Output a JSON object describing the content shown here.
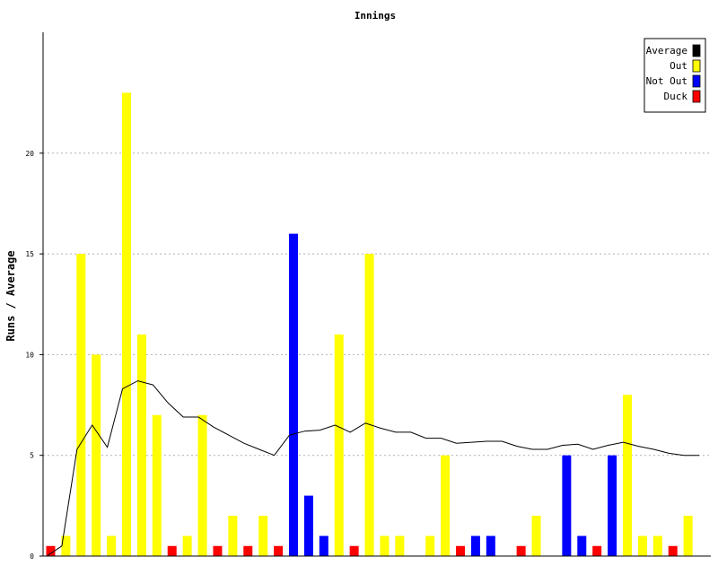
{
  "chart_data": {
    "type": "bar",
    "title": "Innings",
    "xlabel": "",
    "ylabel": "Runs / Average",
    "ylim": [
      0,
      26
    ],
    "yticks": [
      0,
      5,
      10,
      15,
      20
    ],
    "grid": true,
    "legend_position": "top-right",
    "legend": [
      {
        "name": "Average",
        "color": "#000000"
      },
      {
        "name": "Out",
        "color": "#ffff00"
      },
      {
        "name": "Not Out",
        "color": "#0000ff"
      },
      {
        "name": "Duck",
        "color": "#ff0000"
      }
    ],
    "innings": [
      {
        "value": 0,
        "kind": "Duck",
        "average": 0
      },
      {
        "value": 1,
        "kind": "Out",
        "average": 0.5
      },
      {
        "value": 15,
        "kind": "Out",
        "average": 5.3
      },
      {
        "value": 10,
        "kind": "Out",
        "average": 6.5
      },
      {
        "value": 1,
        "kind": "Out",
        "average": 5.4
      },
      {
        "value": 23,
        "kind": "Out",
        "average": 8.3
      },
      {
        "value": 11,
        "kind": "Out",
        "average": 8.7
      },
      {
        "value": 7,
        "kind": "Out",
        "average": 8.5
      },
      {
        "value": 0,
        "kind": "Duck",
        "average": 7.6
      },
      {
        "value": 1,
        "kind": "Out",
        "average": 6.9
      },
      {
        "value": 7,
        "kind": "Out",
        "average": 6.9
      },
      {
        "value": 0,
        "kind": "Duck",
        "average": 6.4
      },
      {
        "value": 2,
        "kind": "Out",
        "average": 6.0
      },
      {
        "value": 0,
        "kind": "Duck",
        "average": 5.6
      },
      {
        "value": 2,
        "kind": "Out",
        "average": 5.3
      },
      {
        "value": 0,
        "kind": "Duck",
        "average": 5.0
      },
      {
        "value": 16,
        "kind": "Not Out",
        "average": 6.0
      },
      {
        "value": 3,
        "kind": "Not Out",
        "average": 6.2
      },
      {
        "value": 1,
        "kind": "Not Out",
        "average": 6.25
      },
      {
        "value": 11,
        "kind": "Out",
        "average": 6.5
      },
      {
        "value": 0,
        "kind": "Duck",
        "average": 6.15
      },
      {
        "value": 15,
        "kind": "Out",
        "average": 6.6
      },
      {
        "value": 1,
        "kind": "Out",
        "average": 6.35
      },
      {
        "value": 1,
        "kind": "Out",
        "average": 6.15
      },
      {
        "value": 0,
        "kind": "None",
        "average": 6.15
      },
      {
        "value": 1,
        "kind": "Out",
        "average": 5.85
      },
      {
        "value": 5,
        "kind": "Out",
        "average": 5.85
      },
      {
        "value": 0,
        "kind": "Duck",
        "average": 5.6
      },
      {
        "value": 1,
        "kind": "Not Out",
        "average": 5.65
      },
      {
        "value": 1,
        "kind": "Not Out",
        "average": 5.7
      },
      {
        "value": 0,
        "kind": "None",
        "average": 5.7
      },
      {
        "value": 0,
        "kind": "Duck",
        "average": 5.45
      },
      {
        "value": 2,
        "kind": "Out",
        "average": 5.3
      },
      {
        "value": 0,
        "kind": "None",
        "average": 5.3
      },
      {
        "value": 5,
        "kind": "Not Out",
        "average": 5.5
      },
      {
        "value": 1,
        "kind": "Not Out",
        "average": 5.55
      },
      {
        "value": 0,
        "kind": "Duck",
        "average": 5.3
      },
      {
        "value": 5,
        "kind": "Not Out",
        "average": 5.5
      },
      {
        "value": 8,
        "kind": "Out",
        "average": 5.65
      },
      {
        "value": 1,
        "kind": "Out",
        "average": 5.45
      },
      {
        "value": 1,
        "kind": "Out",
        "average": 5.3
      },
      {
        "value": 0,
        "kind": "Duck",
        "average": 5.1
      },
      {
        "value": 2,
        "kind": "Out",
        "average": 5.0
      },
      {
        "value": 0,
        "kind": "None",
        "average": 5.0
      }
    ]
  }
}
